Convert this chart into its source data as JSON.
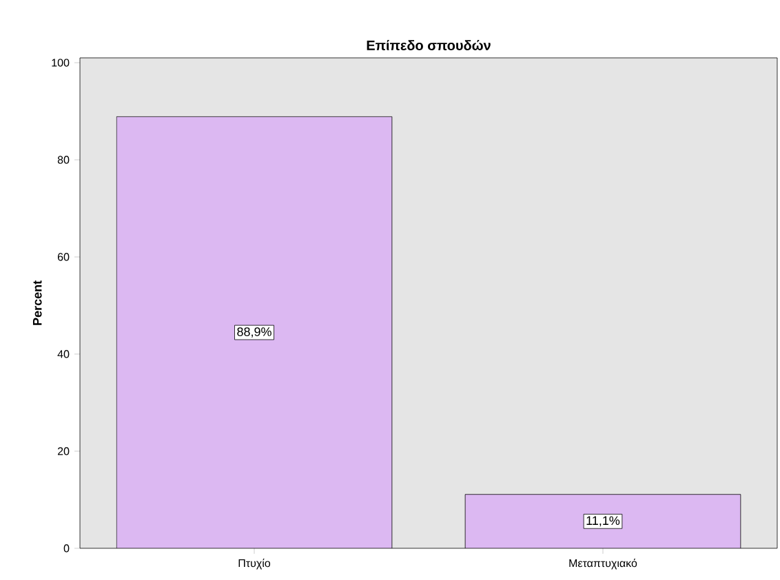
{
  "chart_data": {
    "type": "bar",
    "title": "Επίπεδο σπουδών",
    "ylabel": "Percent",
    "categories": [
      "Πτυχίο",
      "Μεταπτυχιακό"
    ],
    "values": [
      88.9,
      11.1
    ],
    "value_labels": [
      "88,9%",
      "11,1%"
    ],
    "color": "#dcb8f2",
    "ylim": [
      0,
      101
    ],
    "yticks": [
      0,
      20,
      40,
      60,
      80,
      100
    ],
    "grid": false
  }
}
